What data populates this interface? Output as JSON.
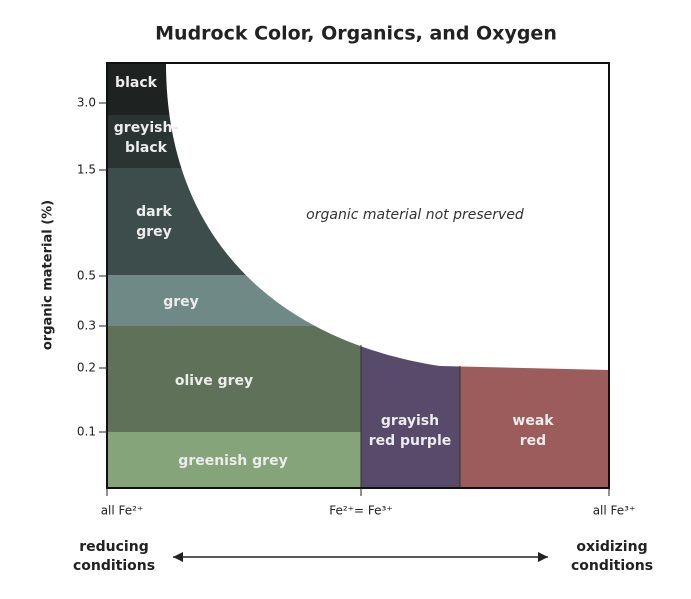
{
  "title": "Mudrock Color, Organics, and Oxygen",
  "y_axis_label": "organic material (%)",
  "y_ticks": [
    "3.0",
    "1.5",
    "0.5",
    "0.3",
    "0.2",
    "0.1"
  ],
  "x_labels": [
    "all Fe²⁺",
    "Fe²⁺= Fe³⁺",
    "all Fe³⁺"
  ],
  "regions": [
    {
      "lines": [
        "black"
      ]
    },
    {
      "lines": [
        "greyish-",
        "black"
      ]
    },
    {
      "lines": [
        "dark",
        "grey"
      ]
    },
    {
      "lines": [
        "grey"
      ]
    },
    {
      "lines": [
        "olive grey"
      ]
    },
    {
      "lines": [
        "greenish grey"
      ]
    },
    {
      "lines": [
        "grayish",
        "red purple"
      ]
    },
    {
      "lines": [
        "weak",
        "red"
      ]
    }
  ],
  "annotation": "organic material not preserved",
  "left_condition": [
    "reducing",
    "conditions"
  ],
  "right_condition": [
    "oxidizing",
    "conditions"
  ]
}
